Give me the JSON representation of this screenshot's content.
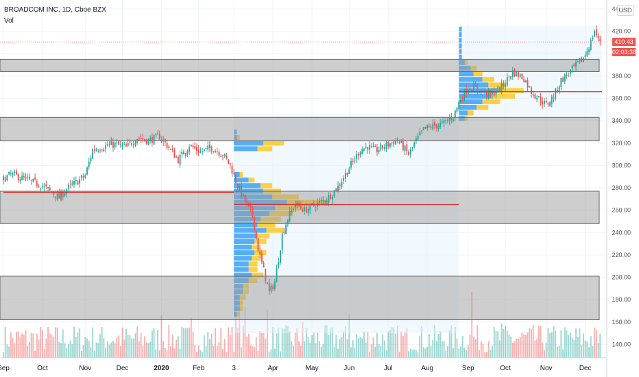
{
  "header": {
    "title": "BROADCOM INC, 1D, Cboe BZX",
    "indicator": "Vol",
    "currency": "USD",
    "last_price": "410.43",
    "countdown": "02:03:38"
  },
  "colors": {
    "up": "#26a69a",
    "down": "#ef5350",
    "zone": "#9e9e9e",
    "poc_line": "#d32f2f",
    "profile_up": "#2196f3",
    "profile_down": "#ffc107",
    "price_tag": "#ef5350"
  },
  "chart_data": {
    "type": "candlestick",
    "title": "BROADCOM INC, 1D, Cboe BZX",
    "ylim": [
      128,
      448
    ],
    "y_ticks": [
      140,
      160,
      180,
      200,
      220,
      240,
      260,
      280,
      300,
      320,
      340,
      360,
      380,
      400,
      420,
      440
    ],
    "y_tick_labels": [
      "140.00",
      "160.00",
      "180.00",
      "200.00",
      "220.00",
      "240.00",
      "260.00",
      "280.00",
      "300.00",
      "320.00",
      "340.00",
      "360.00",
      "380.00",
      "400.00",
      "420.00",
      "440.00"
    ],
    "x_labels": [
      {
        "label": "Sep",
        "day": 0
      },
      {
        "label": "Oct",
        "day": 21
      },
      {
        "label": "Nov",
        "day": 44
      },
      {
        "label": "Dec",
        "day": 64
      },
      {
        "label": "2020",
        "day": 85
      },
      {
        "label": "Feb",
        "day": 105
      },
      {
        "label": "3",
        "day": 124
      },
      {
        "label": "Apr",
        "day": 145
      },
      {
        "label": "May",
        "day": 166
      },
      {
        "label": "Jun",
        "day": 186
      },
      {
        "label": "Jul",
        "day": 207
      },
      {
        "label": "Aug",
        "day": 228
      },
      {
        "label": "Sep",
        "day": 250
      },
      {
        "label": "Oct",
        "day": 270
      },
      {
        "label": "Nov",
        "day": 292
      },
      {
        "label": "Dec",
        "day": 313
      }
    ],
    "day_count": 322,
    "close_path": [
      [
        0,
        288
      ],
      [
        4,
        292
      ],
      [
        8,
        290
      ],
      [
        14,
        286
      ],
      [
        20,
        283
      ],
      [
        26,
        276
      ],
      [
        30,
        271
      ],
      [
        34,
        279
      ],
      [
        40,
        286
      ],
      [
        44,
        291
      ],
      [
        48,
        314
      ],
      [
        54,
        317
      ],
      [
        60,
        319
      ],
      [
        66,
        316
      ],
      [
        72,
        325
      ],
      [
        78,
        322
      ],
      [
        84,
        326
      ],
      [
        88,
        318
      ],
      [
        94,
        305
      ],
      [
        100,
        318
      ],
      [
        106,
        312
      ],
      [
        112,
        316
      ],
      [
        118,
        310
      ],
      [
        122,
        300
      ],
      [
        126,
        282
      ],
      [
        130,
        268
      ],
      [
        134,
        255
      ],
      [
        137,
        225
      ],
      [
        140,
        206
      ],
      [
        143,
        186
      ],
      [
        146,
        196
      ],
      [
        150,
        238
      ],
      [
        153,
        253
      ],
      [
        157,
        266
      ],
      [
        162,
        260
      ],
      [
        168,
        265
      ],
      [
        174,
        270
      ],
      [
        180,
        281
      ],
      [
        186,
        298
      ],
      [
        192,
        314
      ],
      [
        196,
        317
      ],
      [
        200,
        313
      ],
      [
        206,
        318
      ],
      [
        212,
        323
      ],
      [
        218,
        310
      ],
      [
        222,
        322
      ],
      [
        226,
        332
      ],
      [
        230,
        335
      ],
      [
        236,
        337
      ],
      [
        242,
        344
      ],
      [
        246,
        360
      ],
      [
        250,
        370
      ],
      [
        256,
        368
      ],
      [
        262,
        363
      ],
      [
        268,
        370
      ],
      [
        274,
        384
      ],
      [
        280,
        378
      ],
      [
        284,
        366
      ],
      [
        288,
        360
      ],
      [
        292,
        354
      ],
      [
        296,
        362
      ],
      [
        300,
        376
      ],
      [
        306,
        386
      ],
      [
        312,
        396
      ],
      [
        316,
        410
      ],
      [
        318,
        421
      ],
      [
        320,
        412
      ]
    ],
    "volume_range": [
      8,
      48
    ],
    "volume_spikes": [
      [
        125,
        96
      ],
      [
        127,
        88
      ],
      [
        130,
        74
      ],
      [
        85,
        62
      ],
      [
        101,
        58
      ],
      [
        142,
        70
      ],
      [
        161,
        52
      ],
      [
        186,
        64
      ],
      [
        252,
        96
      ],
      [
        268,
        50
      ]
    ],
    "zones": [
      {
        "low": 162,
        "high": 201
      },
      {
        "low": 248,
        "high": 277
      },
      {
        "low": 322,
        "high": 343
      },
      {
        "low": 384,
        "high": 395
      }
    ],
    "poc_lines": [
      {
        "price": 276,
        "from_day": 0,
        "to_day": 124
      },
      {
        "price": 265,
        "from_day": 124,
        "to_day": 245
      },
      {
        "price": 366,
        "from_day": 245,
        "to_day": 322
      }
    ],
    "volume_profiles": [
      {
        "start_day": 124,
        "end_day": 245,
        "low": 150,
        "high": 345,
        "bins": [
          {
            "price": 330,
            "up": 1,
            "down": 0
          },
          {
            "price": 325,
            "up": 1,
            "down": 1
          },
          {
            "price": 320,
            "up": 10,
            "down": 7
          },
          {
            "price": 315,
            "up": 8,
            "down": 5
          },
          {
            "price": 292,
            "up": 2,
            "down": 1
          },
          {
            "price": 287,
            "up": 5,
            "down": 2
          },
          {
            "price": 282,
            "up": 9,
            "down": 4
          },
          {
            "price": 277,
            "up": 10,
            "down": 6
          },
          {
            "price": 272,
            "up": 13,
            "down": 9
          },
          {
            "price": 267,
            "up": 18,
            "down": 14
          },
          {
            "price": 262,
            "up": 14,
            "down": 10
          },
          {
            "price": 257,
            "up": 12,
            "down": 8
          },
          {
            "price": 252,
            "up": 9,
            "down": 7
          },
          {
            "price": 247,
            "up": 8,
            "down": 6
          },
          {
            "price": 242,
            "up": 11,
            "down": 6
          },
          {
            "price": 237,
            "up": 8,
            "down": 4
          },
          {
            "price": 232,
            "up": 7,
            "down": 4
          },
          {
            "price": 227,
            "up": 6,
            "down": 3
          },
          {
            "price": 222,
            "up": 7,
            "down": 4
          },
          {
            "price": 217,
            "up": 6,
            "down": 3
          },
          {
            "price": 212,
            "up": 5,
            "down": 3
          },
          {
            "price": 207,
            "up": 5,
            "down": 3
          },
          {
            "price": 202,
            "up": 6,
            "down": 4
          },
          {
            "price": 197,
            "up": 5,
            "down": 3
          },
          {
            "price": 192,
            "up": 3,
            "down": 2
          },
          {
            "price": 187,
            "up": 3,
            "down": 2
          },
          {
            "price": 182,
            "up": 2,
            "down": 2
          },
          {
            "price": 177,
            "up": 2,
            "down": 1
          },
          {
            "price": 172,
            "up": 2,
            "down": 1
          },
          {
            "price": 167,
            "up": 1,
            "down": 1
          }
        ]
      },
      {
        "start_day": 245,
        "end_day": 322,
        "low": 340,
        "high": 425,
        "bins": [
          {
            "price": 422,
            "up": 1,
            "down": 0
          },
          {
            "price": 417,
            "up": 1,
            "down": 0
          },
          {
            "price": 412,
            "up": 1,
            "down": 0
          },
          {
            "price": 407,
            "up": 1,
            "down": 0
          },
          {
            "price": 402,
            "up": 1,
            "down": 0
          },
          {
            "price": 397,
            "up": 1,
            "down": 0
          },
          {
            "price": 392,
            "up": 2,
            "down": 1
          },
          {
            "price": 387,
            "up": 4,
            "down": 2
          },
          {
            "price": 382,
            "up": 5,
            "down": 3
          },
          {
            "price": 377,
            "up": 8,
            "down": 4
          },
          {
            "price": 372,
            "up": 10,
            "down": 6
          },
          {
            "price": 367,
            "up": 13,
            "down": 9
          },
          {
            "price": 362,
            "up": 11,
            "down": 8
          },
          {
            "price": 357,
            "up": 8,
            "down": 6
          },
          {
            "price": 352,
            "up": 6,
            "down": 4
          },
          {
            "price": 347,
            "up": 3,
            "down": 2
          },
          {
            "price": 342,
            "up": 2,
            "down": 1
          }
        ]
      }
    ],
    "current_price": 410.43
  }
}
